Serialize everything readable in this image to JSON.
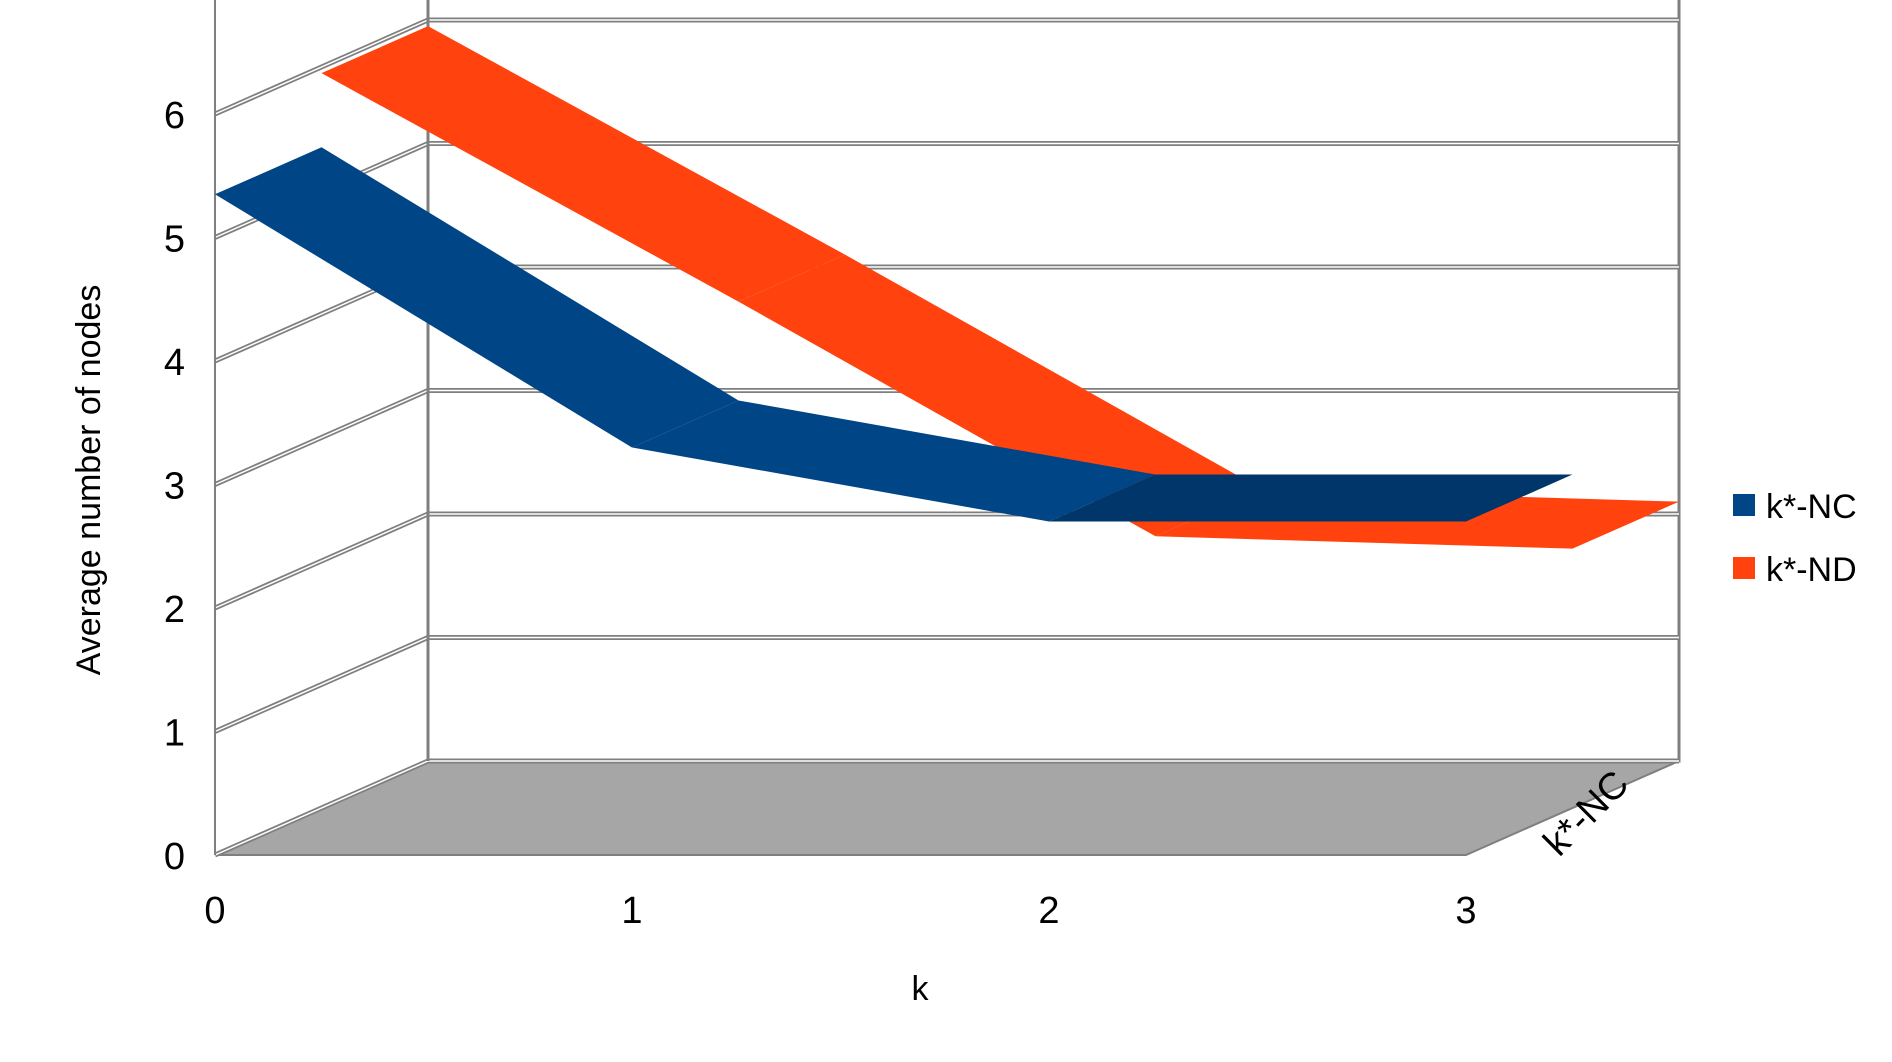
{
  "chart_data": {
    "type": "area",
    "style": "3d-ribbon",
    "x": [
      0,
      1,
      2,
      3
    ],
    "series": [
      {
        "name": "k*-NC",
        "color": "#004586",
        "values": [
          5.35,
          3.3,
          2.7,
          2.7
        ]
      },
      {
        "name": "k*-ND",
        "color": "#ff420e",
        "values": [
          5.95,
          4.1,
          2.2,
          2.1
        ]
      }
    ],
    "xlabel": "k",
    "ylabel": "Average number of nodes",
    "xticks": [
      "0",
      "1",
      "2",
      "3"
    ],
    "yticks": [
      "0",
      "1",
      "2",
      "3",
      "4",
      "5",
      "6"
    ],
    "ylim": [
      0,
      6
    ],
    "depth_axis_label": "k*-NC",
    "grid": true,
    "floor_color": "#a6a6a6",
    "legend": {
      "position": "right",
      "entries": [
        "k*-NC",
        "k*-ND"
      ]
    }
  }
}
